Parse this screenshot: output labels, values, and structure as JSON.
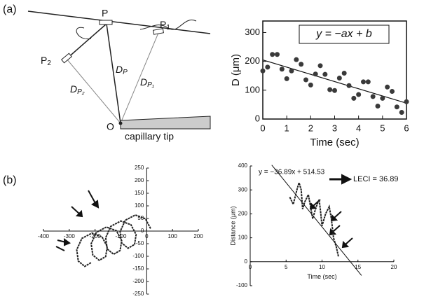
{
  "panel_labels": [
    "(a)",
    "(b)"
  ],
  "diagram": {
    "labels": [
      {
        "text": "P"
      },
      {
        "text": "P",
        "sub": "1"
      },
      {
        "text": "P",
        "sub": "2"
      },
      {
        "text": "D",
        "sub": "P"
      },
      {
        "text": "D",
        "sub": "P₁"
      },
      {
        "text": "D",
        "sub": "P₂"
      },
      {
        "text": "O"
      },
      {
        "text": "capillary tip"
      }
    ]
  },
  "chart_data": [
    {
      "type": "scatter",
      "annotation": "y = −ax + b",
      "xlabel": "Time (sec)",
      "ylabel": "D (μm)",
      "x": [
        0,
        0.2,
        0.4,
        0.6,
        0.8,
        1.0,
        1.2,
        1.4,
        1.6,
        1.8,
        2.0,
        2.2,
        2.4,
        2.6,
        2.8,
        3.0,
        3.2,
        3.4,
        3.6,
        3.8,
        4.0,
        4.2,
        4.4,
        4.6,
        4.8,
        5.0,
        5.2,
        5.4,
        5.6,
        5.8,
        6.0
      ],
      "values": [
        167,
        180,
        224,
        224,
        173,
        140,
        167,
        206,
        190,
        136,
        118,
        156,
        185,
        155,
        102,
        99,
        142,
        159,
        116,
        72,
        85,
        129,
        129,
        78,
        45,
        72,
        111,
        96,
        42,
        23,
        60
      ],
      "color": "#3a3a3a",
      "trend_line": {
        "x": [
          0,
          6
        ],
        "y": [
          205,
          55
        ]
      },
      "xlim": [
        0,
        6
      ],
      "ylim": [
        0,
        340
      ],
      "xticks": [
        0,
        1,
        2,
        3,
        4,
        5,
        6
      ],
      "yticks": [
        0,
        100,
        200,
        300
      ]
    },
    {
      "type": "line",
      "color": "#222222",
      "x": [
        15,
        -5,
        -44,
        -83,
        -103,
        -97,
        -72,
        -47,
        -41,
        -61,
        -100,
        -139,
        -159,
        -153,
        -128,
        -103,
        -97,
        -117,
        -156,
        -195,
        -215,
        -209,
        -184,
        -159,
        -153,
        -173,
        -212,
        -251,
        -271,
        -265,
        -240,
        -215
      ],
      "values": [
        10,
        49,
        64,
        43,
        -2,
        -47,
        -68,
        -53,
        -14,
        25,
        40,
        19,
        -26,
        -71,
        -92,
        -77,
        -38,
        1,
        16,
        -5,
        -50,
        -95,
        -116,
        -101,
        -62,
        -23,
        -8,
        -29,
        -74,
        -119,
        -140,
        -125
      ],
      "xlim": [
        -400,
        200
      ],
      "ylim": [
        -250,
        250
      ],
      "xticks": [
        -400,
        -300,
        -200,
        -100,
        0,
        100,
        200
      ],
      "yticks": [
        -250,
        -200,
        -150,
        -100,
        -50,
        0,
        50,
        100,
        150,
        200,
        250
      ]
    },
    {
      "type": "line",
      "color": "#222222",
      "xlabel": "Time (sec)",
      "ylabel": "Distance (μm)",
      "annotation": "y = −36.89x + 514.53",
      "result": "LECI = 36.89",
      "x": [
        5.5,
        6,
        6.5,
        6.8,
        7.1,
        7.3,
        7.6,
        8.1,
        8.4,
        8.7,
        9.2,
        9.6,
        9.8,
        10,
        10.5,
        11,
        11.3,
        11.6,
        12,
        12.3
      ],
      "values": [
        270,
        240,
        300,
        330,
        300,
        220,
        250,
        280,
        230,
        180,
        230,
        260,
        210,
        150,
        200,
        230,
        180,
        100,
        60,
        20
      ],
      "fit": {
        "slope": -36.89,
        "intercept": 514.53,
        "x": [
          3,
          15.5
        ]
      },
      "xlim": [
        0,
        20
      ],
      "ylim": [
        -100,
        400
      ],
      "xticks": [
        0,
        5,
        10,
        15,
        20
      ],
      "yticks": [
        -100,
        0,
        100,
        200,
        300,
        400
      ]
    }
  ]
}
